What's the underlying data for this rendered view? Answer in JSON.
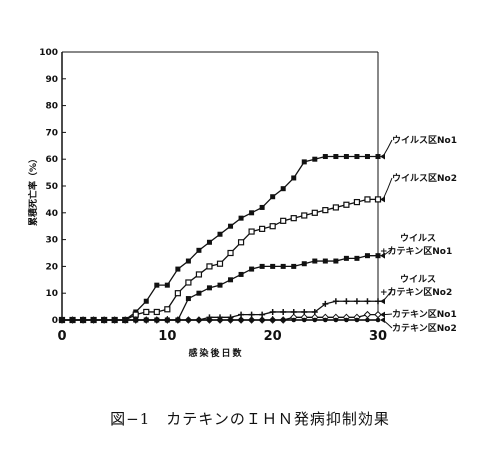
{
  "caption": "図−1　カテキンのＩＨＮ発病抑制効果",
  "chart_data": {
    "type": "line",
    "title": "",
    "ylabel": "累積死亡率（%）",
    "xlabel": "感染後日数",
    "xlim": [
      0,
      30
    ],
    "ylim": [
      0,
      100
    ],
    "xticks": [
      0,
      10,
      20,
      30
    ],
    "yticks": [
      0,
      10,
      20,
      30,
      40,
      50,
      60,
      70,
      80,
      90,
      100
    ],
    "grid": false,
    "x": [
      0,
      1,
      2,
      3,
      4,
      5,
      6,
      7,
      8,
      9,
      10,
      11,
      12,
      13,
      14,
      15,
      16,
      17,
      18,
      19,
      20,
      21,
      22,
      23,
      24,
      25,
      26,
      27,
      28,
      29,
      30
    ],
    "series": [
      {
        "name": "ウイルス区No1",
        "marker": "filled-square",
        "label_lines": [
          "ウイルス区No1"
        ],
        "values": [
          0,
          0,
          0,
          0,
          0,
          0,
          0,
          3,
          7,
          13,
          13,
          19,
          22,
          26,
          29,
          32,
          35,
          38,
          40,
          42,
          46,
          49,
          53,
          59,
          60,
          61,
          61,
          61,
          61,
          61,
          61
        ]
      },
      {
        "name": "ウイルス区No2",
        "marker": "open-square",
        "label_lines": [
          "ウイルス区No2"
        ],
        "values": [
          0,
          0,
          0,
          0,
          0,
          0,
          0,
          2,
          3,
          3,
          4,
          10,
          14,
          17,
          20,
          21,
          25,
          29,
          33,
          34,
          35,
          37,
          38,
          39,
          40,
          41,
          42,
          43,
          44,
          45,
          45
        ]
      },
      {
        "name": "ウイルス+カテキン区No1",
        "marker": "filled-square",
        "label_lines": [
          "ウイルス",
          "+カテキン区No1"
        ],
        "values": [
          0,
          0,
          0,
          0,
          0,
          0,
          0,
          0,
          0,
          0,
          0,
          0,
          8,
          10,
          12,
          13,
          15,
          17,
          19,
          20,
          20,
          20,
          20,
          21,
          22,
          22,
          22,
          23,
          23,
          24,
          24
        ]
      },
      {
        "name": "ウイルス+カテキン区No2",
        "marker": "cross",
        "label_lines": [
          "ウイルス",
          "+カテキン区No2"
        ],
        "values": [
          0,
          0,
          0,
          0,
          0,
          0,
          0,
          0,
          0,
          0,
          0,
          0,
          0,
          0,
          1,
          1,
          1,
          2,
          2,
          2,
          3,
          3,
          3,
          3,
          3,
          6,
          7,
          7,
          7,
          7,
          7
        ]
      },
      {
        "name": "カテキン区No1",
        "marker": "diamond",
        "label_lines": [
          "カテキン区No1"
        ],
        "values": [
          0,
          0,
          0,
          0,
          0,
          0,
          0,
          0,
          0,
          0,
          0,
          0,
          0,
          0,
          0,
          0,
          0,
          0,
          0,
          0,
          0,
          0,
          1,
          1,
          1,
          1,
          1,
          1,
          1,
          2,
          2
        ]
      },
      {
        "name": "カテキン区No2",
        "marker": "filled-circle",
        "label_lines": [
          "カテキン区No2"
        ],
        "values": [
          0,
          0,
          0,
          0,
          0,
          0,
          0,
          0,
          0,
          0,
          0,
          0,
          0,
          0,
          0,
          0,
          0,
          0,
          0,
          0,
          0,
          0,
          0,
          0,
          0,
          0,
          0,
          0,
          0,
          0,
          0
        ]
      }
    ]
  }
}
